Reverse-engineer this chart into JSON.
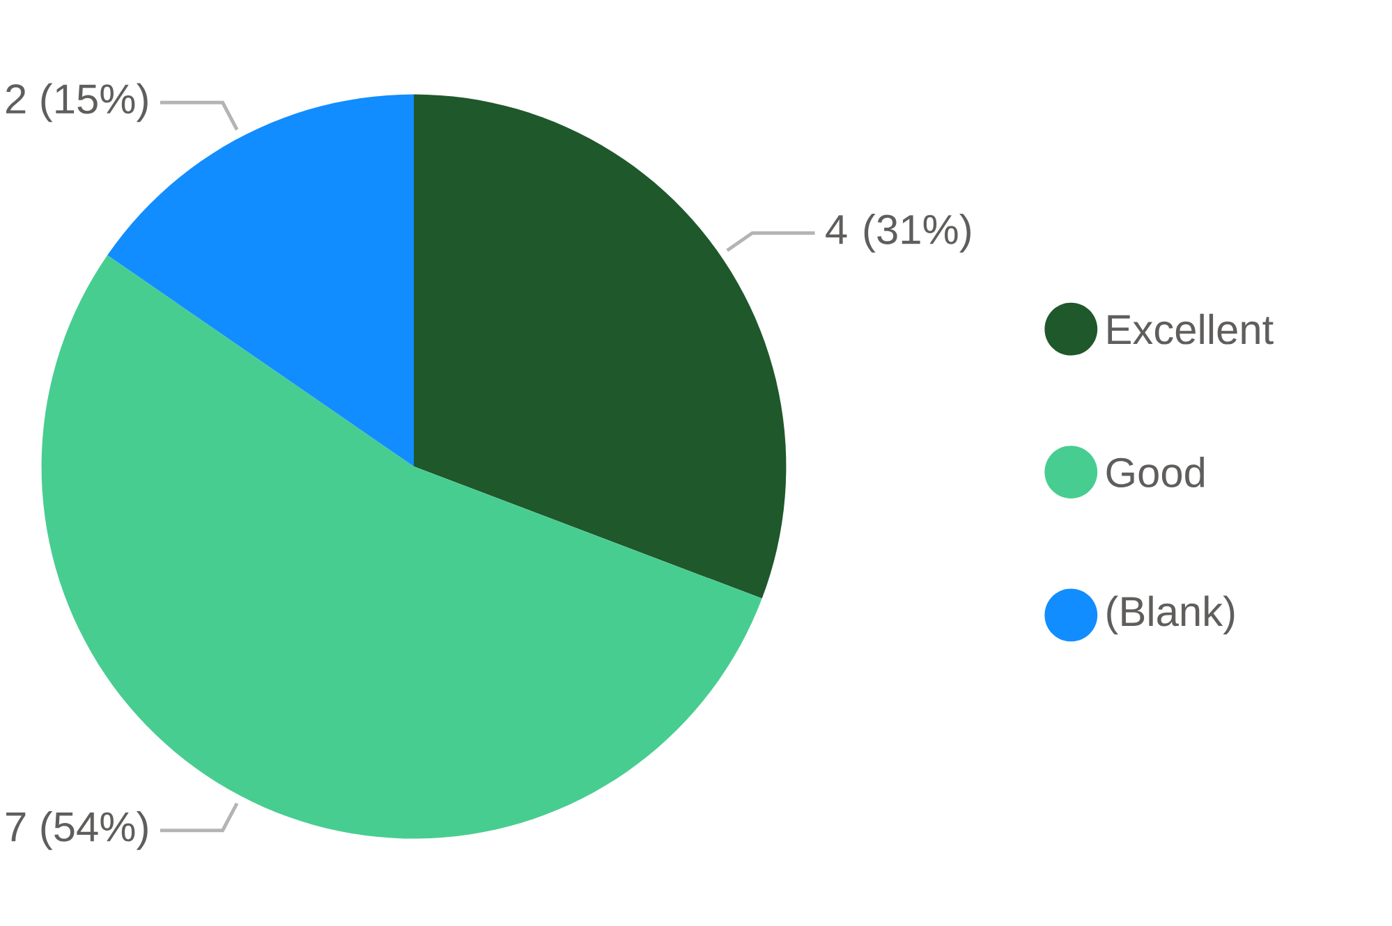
{
  "chart_data": {
    "type": "pie",
    "categories": [
      "Excellent",
      "Good",
      "(Blank)"
    ],
    "values": [
      4,
      7,
      2
    ],
    "colors": [
      "#1f582b",
      "#48cd91",
      "#118dff"
    ],
    "value_labels": [
      "4 (31%)",
      "7 (54%)",
      "2 (15%)"
    ],
    "legend": "right"
  }
}
